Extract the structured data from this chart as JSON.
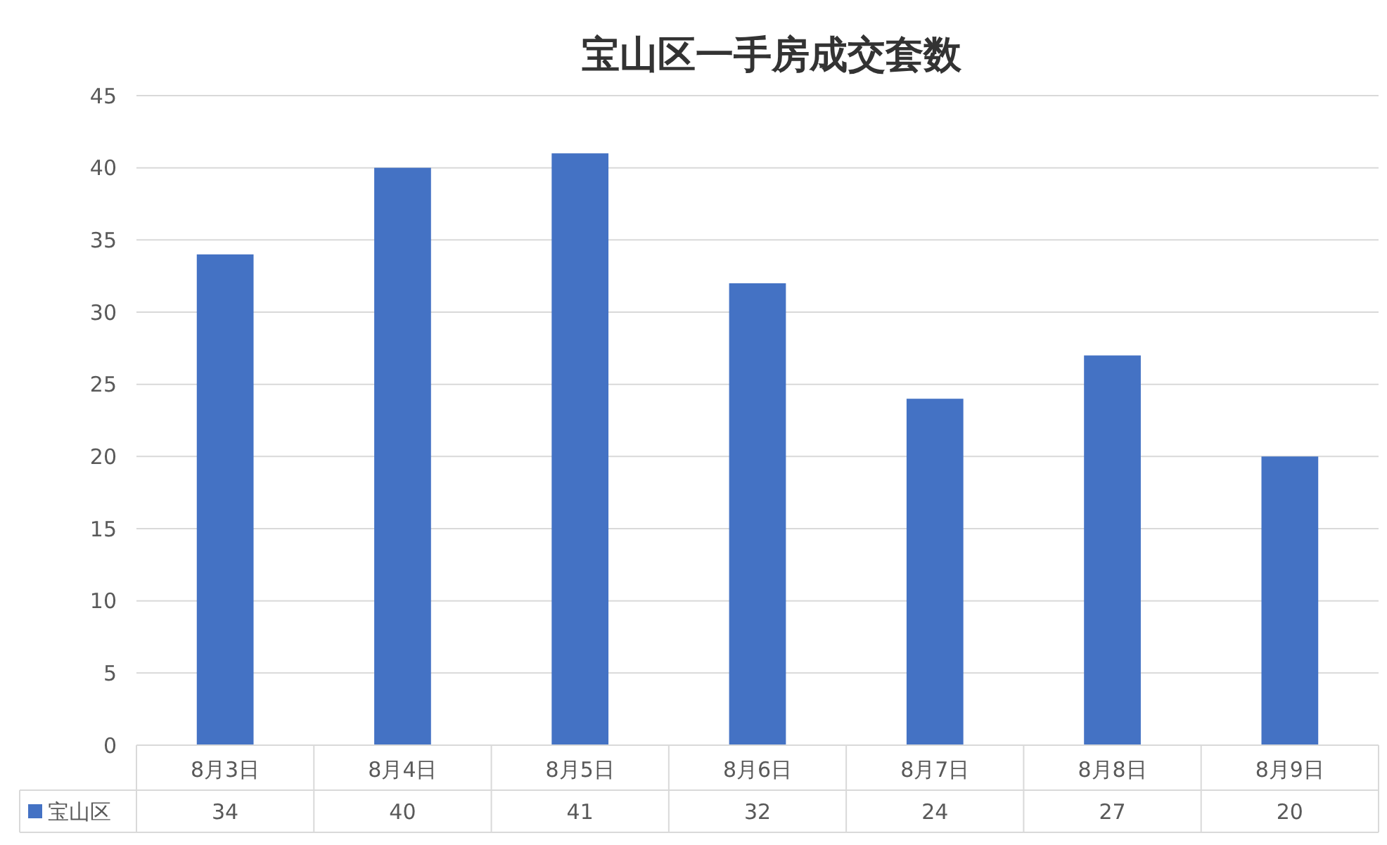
{
  "chart_data": {
    "type": "bar",
    "title": "宝山区一手房成交套数",
    "categories": [
      "8月3日",
      "8月4日",
      "8月5日",
      "8月6日",
      "8月7日",
      "8月8日",
      "8月9日"
    ],
    "series": [
      {
        "name": "宝山区",
        "color": "#4472c4",
        "values": [
          34,
          40,
          41,
          32,
          24,
          27,
          20
        ]
      }
    ],
    "ylim": [
      0,
      45
    ],
    "yticks": [
      0,
      5,
      10,
      15,
      20,
      25,
      30,
      35,
      40,
      45
    ],
    "grid": "y",
    "legend": "bottom",
    "data_labels": true
  }
}
